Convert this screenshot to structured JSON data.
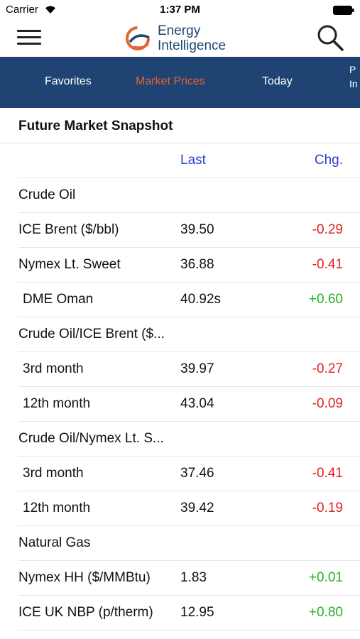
{
  "status_bar": {
    "carrier": "Carrier",
    "time": "1:37 PM"
  },
  "header": {
    "logo_line1": "Energy",
    "logo_line2": "Intelligence",
    "brand_color": "#1e4470",
    "accent_color": "#e4632e"
  },
  "tabs": [
    {
      "label": "Favorites",
      "active": false
    },
    {
      "label": "Market Prices",
      "active": true
    },
    {
      "label": "Today",
      "active": false
    }
  ],
  "tab_partial": {
    "line1": "P",
    "line2": "In"
  },
  "section": {
    "title": "Future Market Snapshot"
  },
  "columns": {
    "last": "Last",
    "chg": "Chg."
  },
  "rows": [
    {
      "type": "group",
      "name": "Crude Oil"
    },
    {
      "type": "item",
      "name": "ICE Brent ($/bbl)",
      "last": "39.50",
      "chg": "-0.29",
      "dir": "neg"
    },
    {
      "type": "item",
      "name": "Nymex Lt. Sweet",
      "last": "36.88",
      "chg": "-0.41",
      "dir": "neg"
    },
    {
      "type": "item",
      "name": "DME Oman",
      "last": "40.92s",
      "chg": "+0.60",
      "dir": "pos",
      "indent": true
    },
    {
      "type": "group",
      "name": "Crude Oil/ICE Brent ($..."
    },
    {
      "type": "item",
      "name": "3rd month",
      "last": "39.97",
      "chg": "-0.27",
      "dir": "neg",
      "indent": true
    },
    {
      "type": "item",
      "name": "12th month",
      "last": "43.04",
      "chg": "-0.09",
      "dir": "neg",
      "indent": true
    },
    {
      "type": "group",
      "name": "Crude Oil/Nymex Lt. S..."
    },
    {
      "type": "item",
      "name": "3rd month",
      "last": "37.46",
      "chg": "-0.41",
      "dir": "neg",
      "indent": true
    },
    {
      "type": "item",
      "name": "12th month",
      "last": "39.42",
      "chg": "-0.19",
      "dir": "neg",
      "indent": true
    },
    {
      "type": "group",
      "name": "Natural Gas"
    },
    {
      "type": "item",
      "name": "Nymex HH ($/MMBtu)",
      "last": "1.83",
      "chg": "+0.01",
      "dir": "pos"
    },
    {
      "type": "item",
      "name": "ICE UK NBP (p/therm)",
      "last": "12.95",
      "chg": "+0.80",
      "dir": "pos"
    }
  ]
}
